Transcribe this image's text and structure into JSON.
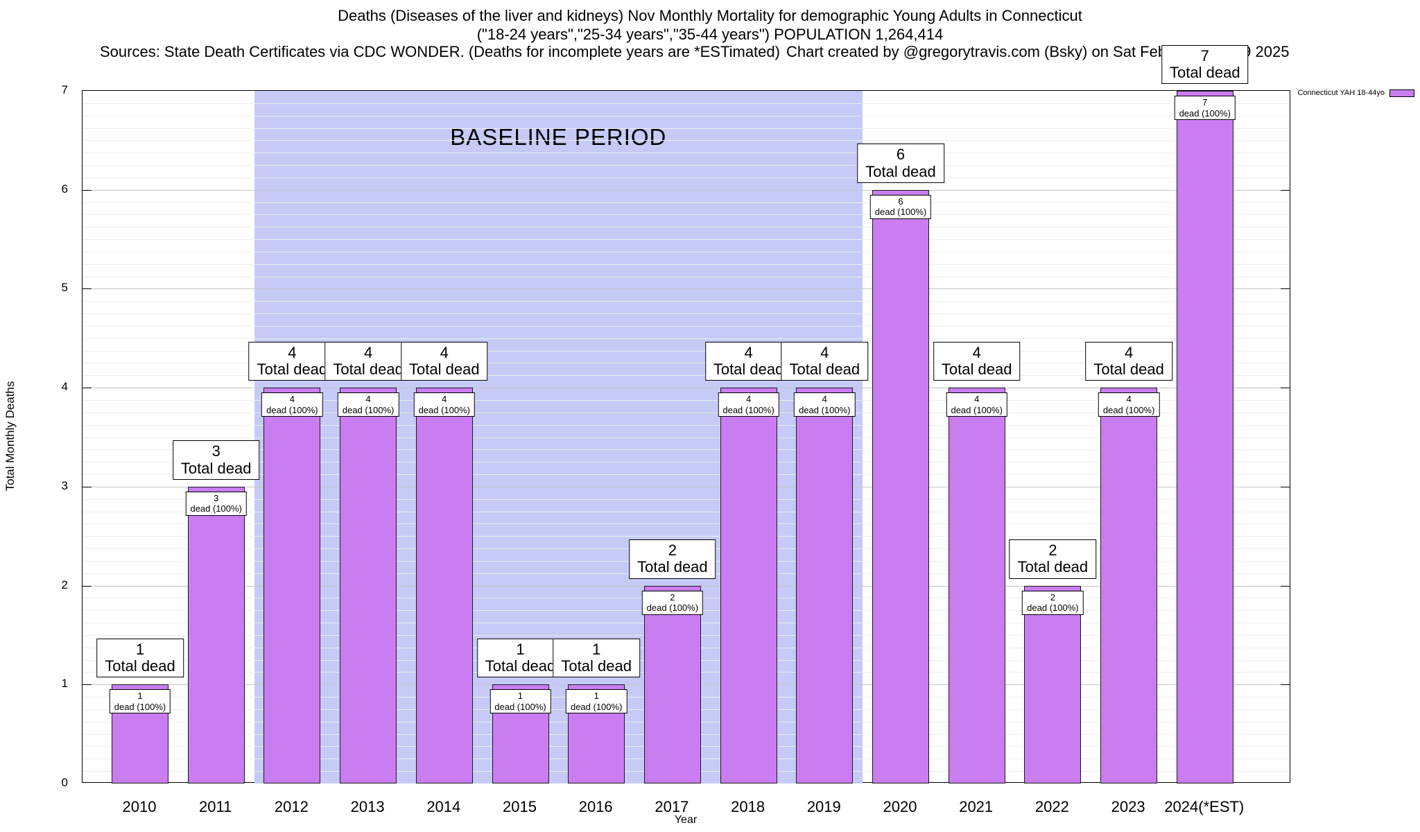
{
  "header": {
    "title_line1": "Deaths (Diseases of the liver and kidneys) Nov Monthly Mortality for demographic Young Adults in Connecticut",
    "title_line2": "(\"18-24 years\",\"25-34 years\",\"35-44 years\") POPULATION 1,264,414",
    "sources": "Sources: State Death Certificates via CDC WONDER. (Deaths for incomplete years are *ESTimated)",
    "credit": "Chart created by @gregorytravis.com (Bsky) on Sat Feb 01 21:58:19 2025"
  },
  "legend": {
    "label": "Connecticut YAH 18-44yo",
    "swatch_color": "#c97df0"
  },
  "chart_data": {
    "type": "bar",
    "title": "Deaths (Diseases of the liver and kidneys) Nov Monthly Mortality for demographic Young Adults in Connecticut",
    "subtitle": "(\"18-24 years\",\"25-34 years\",\"35-44 years\") POPULATION 1,264,414",
    "xlabel": "Year",
    "ylabel": "Total Monthly Deaths",
    "ylim": [
      0,
      7
    ],
    "y_ticks": [
      0,
      1,
      2,
      3,
      4,
      5,
      6,
      7
    ],
    "grid": "horizontal major and minor",
    "legend_position": "top-right outside",
    "categories": [
      "2010",
      "2011",
      "2012",
      "2013",
      "2014",
      "2015",
      "2016",
      "2017",
      "2018",
      "2019",
      "2020",
      "2021",
      "2022",
      "2023",
      "2024(*EST)"
    ],
    "values": [
      1,
      3,
      4,
      4,
      4,
      1,
      1,
      2,
      4,
      4,
      6,
      4,
      2,
      4,
      7
    ],
    "bar_color": "#c97df0",
    "top_label_suffix": "Total dead",
    "inner_label_suffix": "dead (100%)",
    "baseline": {
      "label": "BASELINE PERIOD",
      "from_category": "2012",
      "to_category": "2019",
      "color": "#c5cbf6"
    }
  }
}
